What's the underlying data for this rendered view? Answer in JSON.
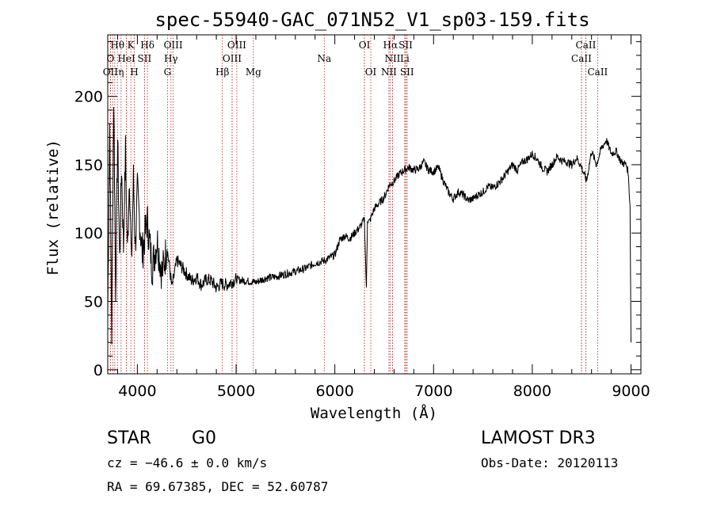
{
  "chart_data": {
    "type": "line",
    "title": "spec-55940-GAC_071N52_V1_sp03-159.fits",
    "xlabel": "Wavelength (Å)",
    "ylabel": "Flux (relative)",
    "xlim": [
      3700,
      9100
    ],
    "ylim": [
      -3,
      245
    ],
    "x_ticks": [
      4000,
      5000,
      6000,
      7000,
      8000,
      9000
    ],
    "y_ticks": [
      0,
      50,
      100,
      150,
      200
    ],
    "x_tick_labels": [
      "4000",
      "5000",
      "6000",
      "7000",
      "8000",
      "9000"
    ],
    "y_tick_labels": [
      "0",
      "50",
      "100",
      "150",
      "200"
    ],
    "series": [
      {
        "name": "flux",
        "x": [
          3700,
          3720,
          3740,
          3760,
          3780,
          3800,
          3820,
          3840,
          3860,
          3880,
          3900,
          3920,
          3940,
          3960,
          3980,
          4000,
          4050,
          4100,
          4150,
          4200,
          4250,
          4300,
          4350,
          4400,
          4450,
          4500,
          4550,
          4600,
          4650,
          4700,
          4750,
          4800,
          4850,
          4900,
          4950,
          5000,
          5100,
          5200,
          5300,
          5400,
          5500,
          5600,
          5700,
          5800,
          5900,
          6000,
          6050,
          6100,
          6150,
          6200,
          6250,
          6300,
          6320,
          6330,
          6350,
          6400,
          6450,
          6500,
          6550,
          6600,
          6650,
          6700,
          6750,
          6800,
          6850,
          6900,
          6950,
          7000,
          7050,
          7100,
          7150,
          7200,
          7250,
          7300,
          7350,
          7400,
          7450,
          7500,
          7550,
          7600,
          7650,
          7700,
          7750,
          7800,
          7850,
          7900,
          7950,
          8000,
          8050,
          8100,
          8150,
          8200,
          8250,
          8300,
          8350,
          8400,
          8450,
          8500,
          8550,
          8600,
          8650,
          8700,
          8750,
          8800,
          8850,
          8900,
          8950,
          8970,
          8990,
          9000
        ],
        "y": [
          40,
          180,
          25,
          200,
          60,
          170,
          80,
          150,
          90,
          160,
          85,
          145,
          75,
          140,
          90,
          130,
          85,
          110,
          75,
          95,
          70,
          90,
          60,
          80,
          75,
          70,
          65,
          68,
          62,
          66,
          65,
          60,
          63,
          62,
          64,
          66,
          65,
          64,
          67,
          68,
          70,
          72,
          74,
          78,
          80,
          84,
          95,
          98,
          96,
          100,
          104,
          110,
          58,
          110,
          108,
          118,
          122,
          126,
          135,
          138,
          143,
          146,
          148,
          146,
          147,
          152,
          146,
          145,
          148,
          138,
          130,
          125,
          130,
          128,
          124,
          125,
          128,
          130,
          134,
          133,
          136,
          140,
          145,
          150,
          146,
          152,
          154,
          158,
          154,
          148,
          145,
          150,
          156,
          153,
          152,
          150,
          155,
          148,
          138,
          160,
          150,
          162,
          168,
          158,
          160,
          152,
          150,
          145,
          120,
          20
        ]
      }
    ],
    "spectral_lines": [
      {
        "label": "Hθ",
        "wavelength": 3798,
        "row": 1
      },
      {
        "label": "K",
        "wavelength": 3934,
        "row": 1
      },
      {
        "label": "Hδ",
        "wavelength": 4102,
        "row": 1
      },
      {
        "label": "OIII",
        "wavelength": 4363,
        "row": 1
      },
      {
        "label": "OIII",
        "wavelength": 5007,
        "row": 1
      },
      {
        "label": "Na",
        "wavelength": 5893,
        "row": 2
      },
      {
        "label": "OI",
        "wavelength": 6300,
        "row": 1
      },
      {
        "label": "Hα",
        "wavelength": 6563,
        "row": 1
      },
      {
        "label": "SII",
        "wavelength": 6717,
        "row": 1
      },
      {
        "label": "CaII",
        "wavelength": 8542,
        "row": 1
      },
      {
        "label": "O",
        "wavelength": 3727,
        "row": 2
      },
      {
        "label": "HeI",
        "wavelength": 3889,
        "row": 2
      },
      {
        "label": "SII",
        "wavelength": 4072,
        "row": 2
      },
      {
        "label": "Hγ",
        "wavelength": 4340,
        "row": 2
      },
      {
        "label": "OIII",
        "wavelength": 4959,
        "row": 2
      },
      {
        "label": "NII",
        "wavelength": 6584,
        "row": 2
      },
      {
        "label": "Li",
        "wavelength": 6708,
        "row": 2
      },
      {
        "label": "CaII",
        "wavelength": 8498,
        "row": 2
      },
      {
        "label": "OII",
        "wavelength": 3727,
        "row": 3
      },
      {
        "label": "η",
        "wavelength": 3835,
        "row": 3
      },
      {
        "label": "H",
        "wavelength": 3969,
        "row": 3
      },
      {
        "label": "G",
        "wavelength": 4305,
        "row": 3
      },
      {
        "label": "Hβ",
        "wavelength": 4861,
        "row": 3
      },
      {
        "label": "Mg",
        "wavelength": 5175,
        "row": 3
      },
      {
        "label": "OI",
        "wavelength": 6364,
        "row": 3
      },
      {
        "label": "NII",
        "wavelength": 6548,
        "row": 3
      },
      {
        "label": "SII",
        "wavelength": 6731,
        "row": 3
      },
      {
        "label": "CaII",
        "wavelength": 8662,
        "row": 3
      }
    ],
    "extra_line_markers": [
      3750,
      3771,
      3889,
      4072,
      4959,
      6300,
      6548,
      6584,
      6708,
      6731,
      8498,
      8542
    ]
  },
  "info": {
    "object_class": "STAR",
    "subclass": "G0",
    "survey": "LAMOST DR3",
    "cz": "cz = −46.6 ± 0.0 km/s",
    "obs_date": "Obs-Date: 20120113",
    "coords": "RA =  69.67385, DEC =  52.60787"
  },
  "colors": {
    "line_marker": "#b22222",
    "axis": "#000000",
    "spectrum": "#000000"
  }
}
